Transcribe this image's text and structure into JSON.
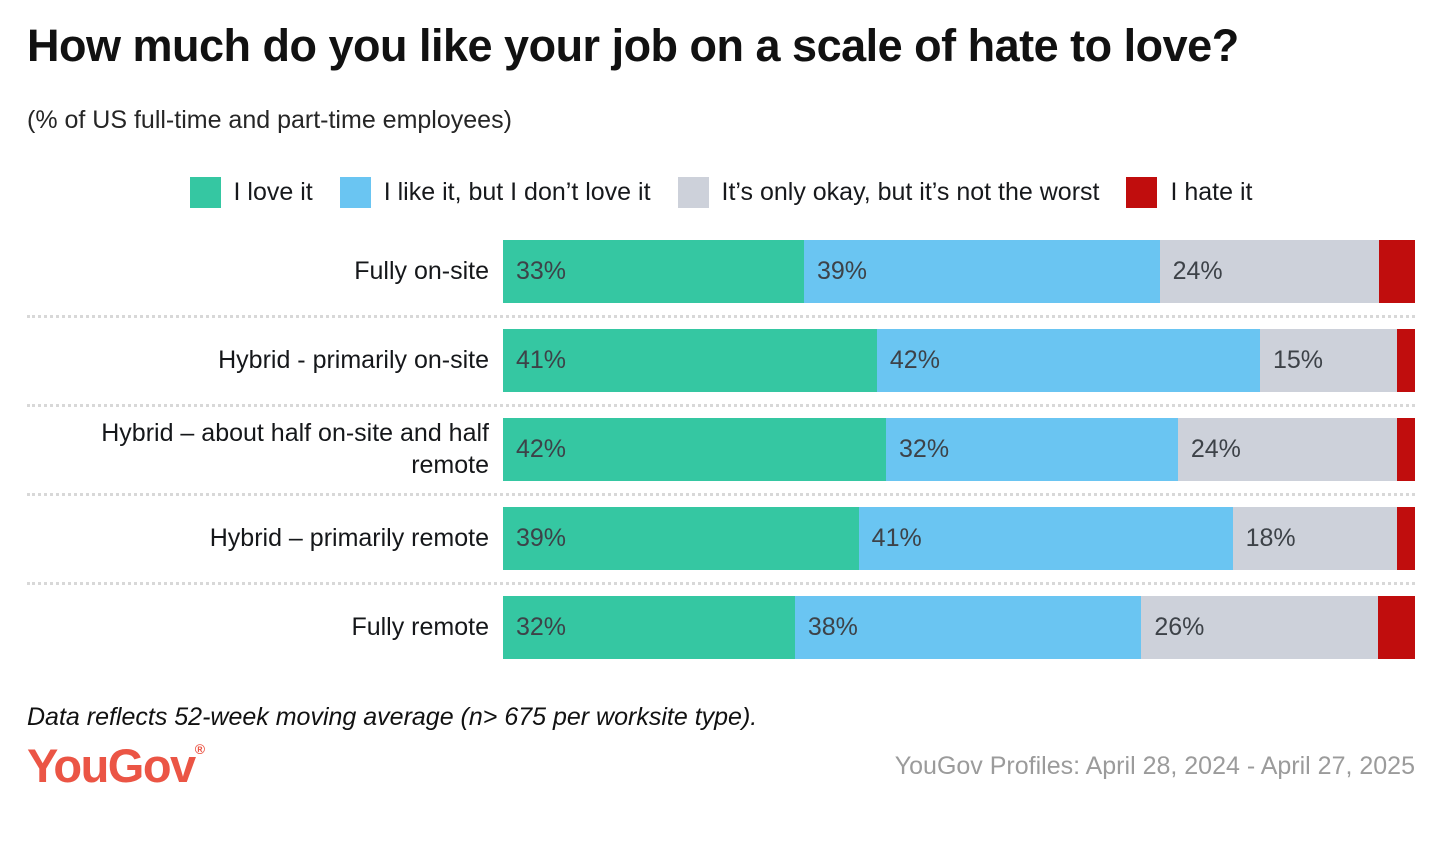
{
  "header": {
    "title": "How much do you like your job on a scale of hate to love?",
    "subtitle": "(% of US full-time and part-time employees)"
  },
  "chart_data": {
    "type": "bar",
    "orientation": "horizontal_stacked",
    "title": "How much do you like your job on a scale of hate to love?",
    "subtitle": "(% of US full-time and part-time employees)",
    "categories": [
      "Fully on-site",
      "Hybrid - primarily on-site",
      "Hybrid – about half on-site and half remote",
      "Hybrid – primarily remote",
      "Fully remote"
    ],
    "series": [
      {
        "name": "I love it",
        "color": "#35c7a2",
        "values": [
          33,
          41,
          42,
          39,
          32
        ],
        "labels_shown": true
      },
      {
        "name": "I like it, but I don’t love it",
        "color": "#6ac5f2",
        "values": [
          39,
          42,
          32,
          41,
          38
        ],
        "labels_shown": true
      },
      {
        "name": "It’s only okay, but it’s not the worst",
        "color": "#cdd1da",
        "values": [
          24,
          15,
          24,
          18,
          26
        ],
        "labels_shown": true
      },
      {
        "name": "I hate it",
        "color": "#c00d0d",
        "values": [
          4,
          2,
          2,
          2,
          4
        ],
        "labels_shown": false
      }
    ],
    "xlim": [
      0,
      100
    ],
    "grid": false,
    "legend_position": "top-center",
    "value_label_suffix": "%"
  },
  "footer": {
    "note": "Data reflects 52-week moving average (n> 675 per worksite type).",
    "logo_text": "YouGov",
    "logo_registered": "®",
    "logo_color": "#eb5545",
    "source": "YouGov Profiles: April 28, 2024 - April 27, 2025"
  }
}
